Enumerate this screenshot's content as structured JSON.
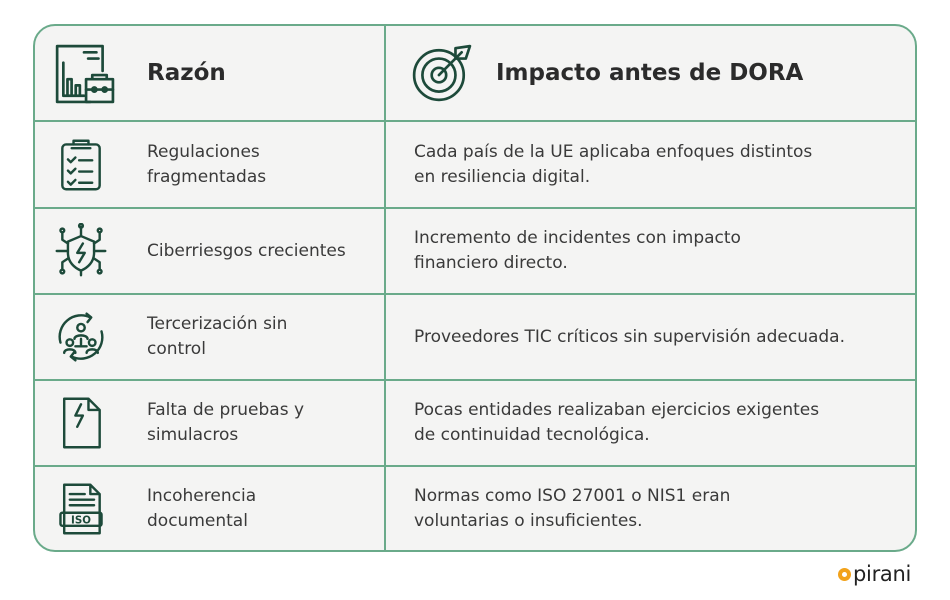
{
  "header": {
    "col1": {
      "title": "Razón",
      "icon": "report-briefcase-icon"
    },
    "col2": {
      "title": "Impacto antes de DORA",
      "icon": "target-arrow-icon"
    }
  },
  "rows": [
    {
      "icon": "clipboard-checklist-icon",
      "reason_line1": "Regulaciones",
      "reason_line2": "fragmentadas",
      "impact_line1": "Cada país de la UE aplicaba enfoques distintos",
      "impact_line2": "en resiliencia digital."
    },
    {
      "icon": "cyber-shield-circuit-icon",
      "reason_line1": "Ciberriesgos crecientes",
      "reason_line2": "",
      "impact_line1": "Incremento de incidentes con impacto",
      "impact_line2": "financiero directo."
    },
    {
      "icon": "outsourcing-people-cycle-icon",
      "reason_line1": "Tercerización sin",
      "reason_line2": "control",
      "impact_line1": "Proveedores TIC críticos sin supervisión adecuada.",
      "impact_line2": ""
    },
    {
      "icon": "document-lightning-icon",
      "reason_line1": "Falta de pruebas y",
      "reason_line2": "simulacros",
      "impact_line1": "Pocas entidades realizaban ejercicios exigentes",
      "impact_line2": "de continuidad tecnológica."
    },
    {
      "icon": "iso-document-icon",
      "reason_line1": "Incoherencia",
      "reason_line2": "documental",
      "impact_line1": "Normas como ISO 27001 o NIS1 eran",
      "impact_line2": "voluntarias o insuficientes."
    }
  ],
  "iso_label": "ISO",
  "logo": {
    "text": "pirani"
  },
  "colors": {
    "border": "#6aaa8a",
    "icon": "#1d4a3a",
    "background": "#f4f4f3",
    "logo_accent": "#f2a21b"
  }
}
